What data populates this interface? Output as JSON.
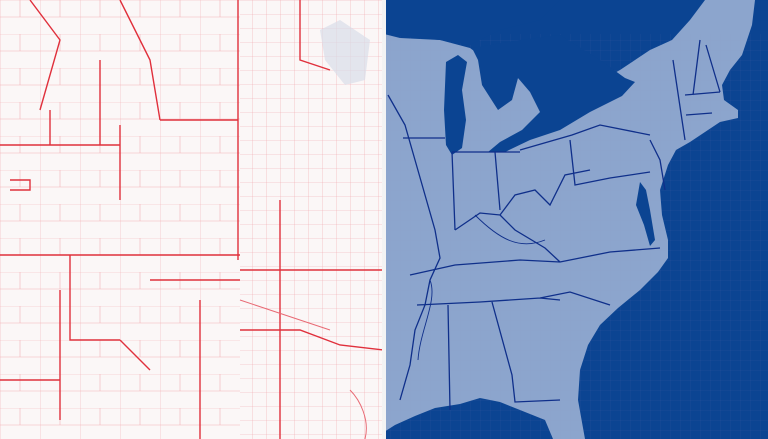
{
  "map": {
    "left_panel": {
      "style": "county-outline",
      "background": "#fbf7f7",
      "county_line_color": "#f2a0a6",
      "major_line_color": "#e0303c"
    },
    "right_panel": {
      "style": "filled-states",
      "water_color": "#0b4492",
      "land_color": "#8ca5cd",
      "state_line_color": "#0f2f8a",
      "county_line_color": "#a08cb8"
    }
  }
}
